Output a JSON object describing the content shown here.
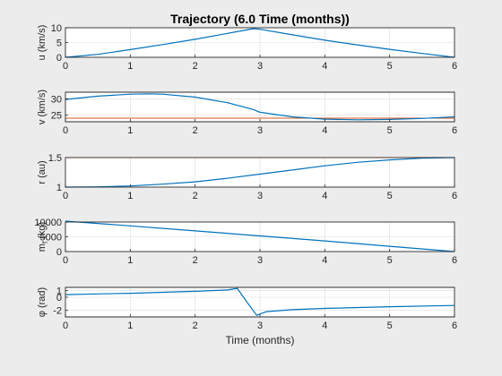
{
  "figure": {
    "title": "Trajectory (6.0 Time (months))",
    "xlabel": "Time (months)"
  },
  "colors": {
    "background": "#ececec",
    "axes": "#ffffff",
    "series": "#0072BD",
    "reference": "#D95319",
    "grid": "#dcdcdc"
  },
  "chart_data": [
    {
      "type": "line",
      "ylabel": "u (km/s)",
      "xlim": [
        0,
        6
      ],
      "ylim": [
        0,
        10
      ],
      "xticks": [
        0,
        1,
        2,
        3,
        4,
        5,
        6
      ],
      "yticks": [
        0,
        5,
        10
      ],
      "grid": true,
      "series": [
        {
          "x": [
            0,
            0.5,
            1,
            1.5,
            2,
            2.5,
            2.9,
            3,
            3.5,
            4,
            4.5,
            5,
            5.5,
            6
          ],
          "values": [
            0,
            1.0,
            2.6,
            4.3,
            6.1,
            8.1,
            9.7,
            9.5,
            7.6,
            5.8,
            4.2,
            2.7,
            1.3,
            0
          ]
        }
      ]
    },
    {
      "type": "line",
      "ylabel": "v (km/s)",
      "xlim": [
        0,
        6
      ],
      "ylim": [
        23,
        32
      ],
      "xticks": [
        0,
        1,
        2,
        3,
        4,
        5,
        6
      ],
      "yticks": [
        25,
        30
      ],
      "grid": true,
      "series": [
        {
          "x": [
            0,
            0.5,
            1,
            1.3,
            1.5,
            2,
            2.5,
            2.9,
            3,
            3.5,
            4,
            4.5,
            5,
            5.5,
            6
          ],
          "values": [
            29.8,
            30.8,
            31.4,
            31.5,
            31.4,
            30.5,
            28.8,
            26.7,
            25.9,
            24.5,
            23.8,
            23.6,
            23.7,
            24.0,
            24.5
          ]
        }
      ],
      "reference": 24.1
    },
    {
      "type": "line",
      "ylabel": "r (au)",
      "xlim": [
        0,
        6
      ],
      "ylim": [
        1,
        1.5
      ],
      "xticks": [
        0,
        1,
        2,
        3,
        4,
        5,
        6
      ],
      "yticks": [
        1,
        1.5
      ],
      "grid": true,
      "series": [
        {
          "x": [
            0,
            0.5,
            1,
            1.5,
            2,
            2.5,
            3,
            3.5,
            4,
            4.5,
            5,
            5.5,
            6
          ],
          "values": [
            1.0,
            1.005,
            1.02,
            1.05,
            1.09,
            1.15,
            1.22,
            1.29,
            1.36,
            1.42,
            1.46,
            1.49,
            1.5
          ]
        }
      ],
      "reference": 1.5
    },
    {
      "type": "line",
      "ylabel": "m_f (kg)",
      "xlim": [
        0,
        6
      ],
      "ylim": [
        0,
        10000
      ],
      "xticks": [
        0,
        1,
        2,
        3,
        4,
        5,
        6
      ],
      "yticks": [
        0,
        5000,
        10000
      ],
      "grid": true,
      "series": [
        {
          "x": [
            0,
            1,
            2,
            3,
            4,
            5,
            6
          ],
          "values": [
            10300,
            8700,
            7000,
            5300,
            3600,
            1800,
            0
          ]
        }
      ]
    },
    {
      "type": "line",
      "ylabel": "φ (rad)",
      "xlim": [
        0,
        6
      ],
      "ylim": [
        -3,
        1.5
      ],
      "xticks": [
        0,
        1,
        2,
        3,
        4,
        5,
        6
      ],
      "yticks": [
        -2,
        0,
        1
      ],
      "grid": true,
      "series": [
        {
          "x": [
            0,
            0.5,
            1,
            1.5,
            2,
            2.5,
            2.65,
            2.8,
            2.95,
            3.1,
            3.5,
            4,
            5,
            6
          ],
          "values": [
            0.4,
            0.5,
            0.6,
            0.75,
            0.9,
            1.1,
            1.35,
            -0.75,
            -2.75,
            -2.2,
            -1.9,
            -1.7,
            -1.45,
            -1.25
          ]
        }
      ]
    }
  ]
}
